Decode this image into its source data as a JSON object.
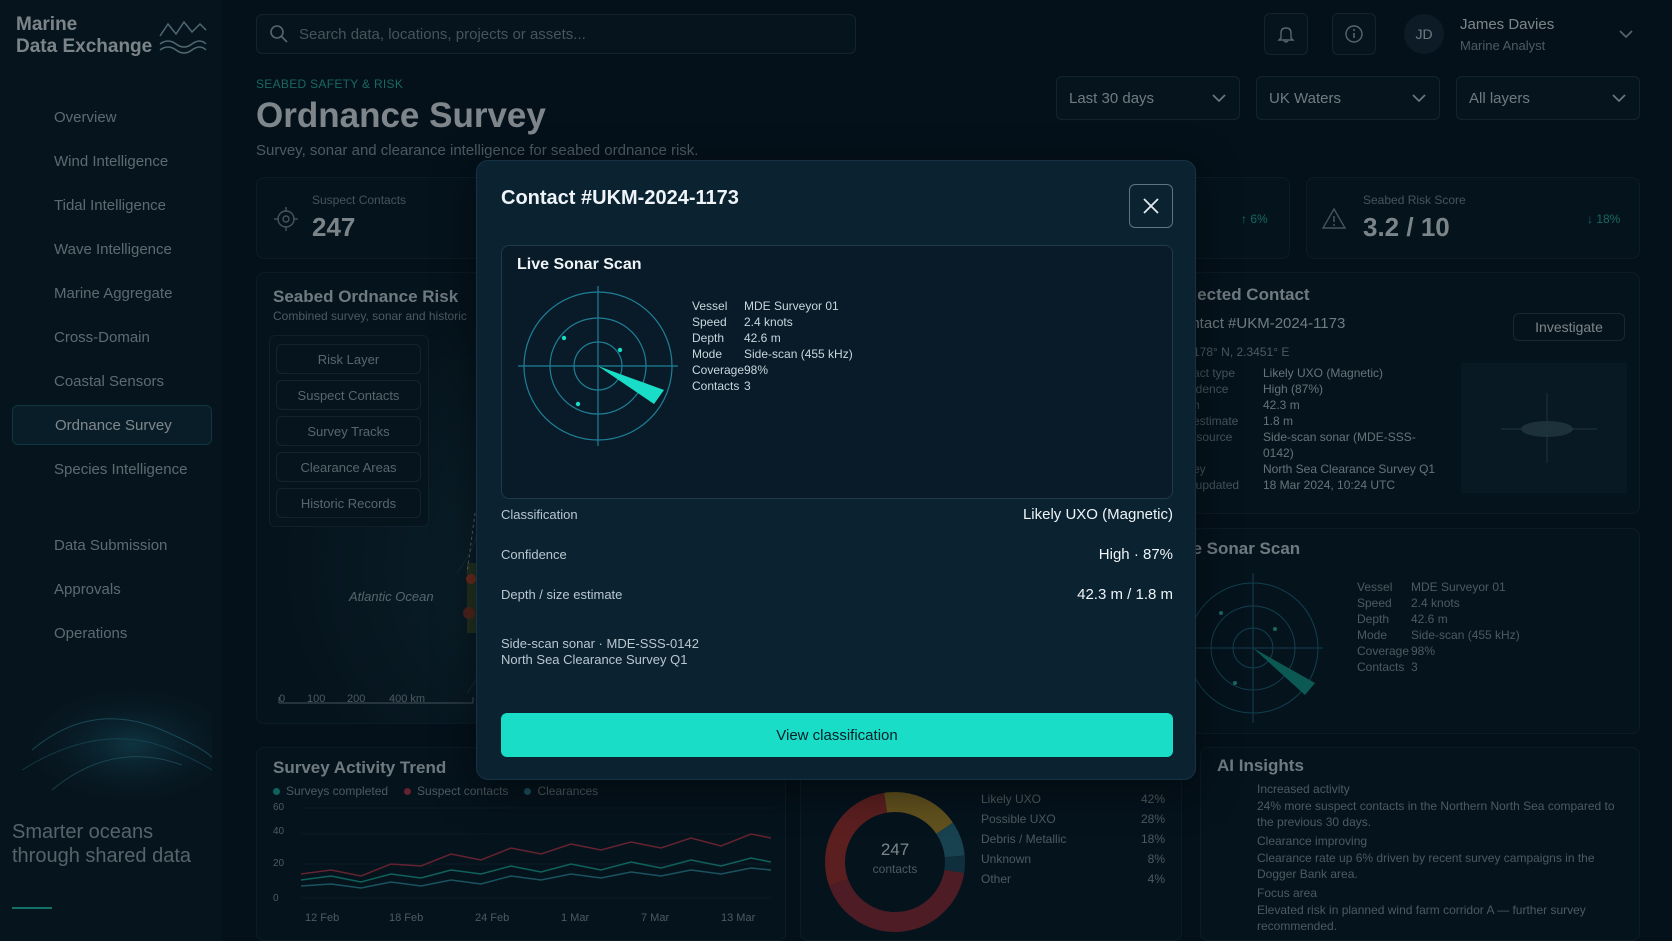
{
  "app": {
    "name_line1": "Marine",
    "name_line2": "Data Exchange"
  },
  "sidebar": {
    "items": [
      {
        "label": "Overview",
        "icon": "home-icon"
      },
      {
        "label": "Wind Intelligence",
        "icon": "wind-icon"
      },
      {
        "label": "Tidal Intelligence",
        "icon": "waves-icon"
      },
      {
        "label": "Wave Intelligence",
        "icon": "wave-icon"
      },
      {
        "label": "Marine Aggregate",
        "icon": "layers-icon"
      },
      {
        "label": "Cross-Domain",
        "icon": "bars-icon"
      },
      {
        "label": "Coastal Sensors",
        "icon": "signal-icon"
      },
      {
        "label": "Ordnance Survey",
        "icon": "warning-icon"
      },
      {
        "label": "Species Intelligence",
        "icon": "fish-icon"
      }
    ],
    "active": "Ordnance Survey",
    "items2": [
      {
        "label": "Data Submission",
        "icon": "upload-icon"
      },
      {
        "label": "Approvals",
        "icon": "shield-check-icon"
      },
      {
        "label": "Operations",
        "icon": "document-icon"
      }
    ],
    "tagline": "Smarter oceans through shared data"
  },
  "topbar": {
    "search_placeholder": "Search data, locations, projects or assets...",
    "user_initials": "JD",
    "user_name": "James Davies",
    "user_role": "Marine Analyst"
  },
  "header": {
    "eyebrow": "SEABED SAFETY & RISK",
    "title": "Ordnance Survey",
    "subtitle": "Survey, sonar and clearance intelligence for seabed ordnance risk.",
    "filters": [
      "Last 30 days",
      "UK Waters",
      "All layers"
    ]
  },
  "kpis": {
    "suspect_label": "Suspect Contacts",
    "suspect_value": "247",
    "mid_delta": "↑ 6%",
    "risk_label": "Seabed Risk Score",
    "risk_value": "3.2 / 10",
    "risk_delta": "↓ 18%"
  },
  "map": {
    "title": "Seabed Ordnance Risk",
    "subtitle": "Combined survey, sonar and historic",
    "layers": [
      "Risk Layer",
      "Suspect Contacts",
      "Survey Tracks",
      "Clearance Areas",
      "Historic Records"
    ],
    "ocean_label": "Atlantic Ocean",
    "scale": [
      "0",
      "100",
      "200",
      "400 km"
    ]
  },
  "selected": {
    "title": "elected Contact",
    "contact": "ontact #UKM-2024-1173",
    "button": "Investigate",
    "coords": ".2178° N, 2.3451° E",
    "rows": [
      {
        "k": "ntact type",
        "v": "Likely UXO (Magnetic)"
      },
      {
        "k": "nfidence",
        "v": "High (87%)"
      },
      {
        "k": "pth",
        "v": "42.3 m"
      },
      {
        "k": "e estimate",
        "v": "1.8 m"
      },
      {
        "k": "ta source",
        "v": "Side-scan sonar (MDE-SSS-0142)"
      },
      {
        "k": "rvey",
        "v": "North Sea Clearance Survey Q1"
      },
      {
        "k": "st updated",
        "v": "18 Mar 2024, 10:24 UTC"
      }
    ]
  },
  "bg_sonar": {
    "title": "ve Sonar Scan",
    "rows": [
      {
        "k": "Vessel",
        "v": "MDE Surveyor 01"
      },
      {
        "k": "Speed",
        "v": "2.4 knots"
      },
      {
        "k": "Depth",
        "v": "42.6 m"
      },
      {
        "k": "Mode",
        "v": "Side-scan (455 kHz)"
      },
      {
        "k": "Coverage",
        "v": "98%"
      },
      {
        "k": "Contacts",
        "v": "3"
      }
    ]
  },
  "trend": {
    "title": "Survey Activity Trend",
    "legend": [
      "Surveys completed",
      "Suspect contacts",
      "Clearances"
    ],
    "yticks": [
      "60",
      "40",
      "20",
      "0"
    ],
    "xticks": [
      "12 Feb",
      "18 Feb",
      "24 Feb",
      "1 Mar",
      "7 Mar",
      "13 Mar"
    ],
    "colors": {
      "surveys": "#1aa89a",
      "suspect": "#b5384a",
      "clearances": "#2f8fa0"
    }
  },
  "donut": {
    "center_value": "247",
    "center_label": "contacts",
    "segments": [
      {
        "label": "Likely UXO",
        "pct": "42%",
        "value": 42,
        "color": "#8c2a35"
      },
      {
        "label": "Possible UXO",
        "pct": "28%",
        "value": 28,
        "color": "#a4312f"
      },
      {
        "label": "Debris / Metallic",
        "pct": "18%",
        "value": 18,
        "color": "#b08a2a"
      },
      {
        "label": "Unknown",
        "pct": "8%",
        "value": 8,
        "color": "#2b6f86"
      },
      {
        "label": "Other",
        "pct": "4%",
        "value": 4,
        "color": "#1d4e63"
      }
    ]
  },
  "insights": {
    "title": "AI Insights",
    "items": [
      {
        "title": "Increased activity",
        "body": "24% more suspect contacts in the Northern North Sea compared to the previous 30 days.",
        "icon": "warning-icon"
      },
      {
        "title": "Clearance improving",
        "body": "Clearance rate up 6% driven by recent survey campaigns in the Dogger Bank area.",
        "icon": "check-icon"
      },
      {
        "title": "Focus area",
        "body": "Elevated risk in planned wind farm corridor A — further survey recommended.",
        "icon": "info-icon"
      }
    ]
  },
  "modal": {
    "title": "Contact #UKM-2024-1173",
    "sonar_title": "Live Sonar Scan",
    "sonar_rows": [
      {
        "k": "Vessel",
        "v": "MDE Surveyor 01"
      },
      {
        "k": "Speed",
        "v": "2.4 knots"
      },
      {
        "k": "Depth",
        "v": "42.6 m"
      },
      {
        "k": "Mode",
        "v": "Side-scan (455 kHz)"
      },
      {
        "k": "Coverage",
        "v": "98%"
      },
      {
        "k": "Contacts",
        "v": "3"
      }
    ],
    "classification_label": "Classification",
    "classification_value": "Likely UXO (Magnetic)",
    "confidence_label": "Confidence",
    "confidence_value": "High · 87%",
    "depth_label": "Depth / size estimate",
    "depth_value": "42.3 m / 1.8 m",
    "source_line1": "Side-scan sonar · MDE-SSS-0142",
    "source_line2": "North Sea Clearance Survey Q1",
    "cta": "View classification",
    "accent": "#19ddc6"
  }
}
